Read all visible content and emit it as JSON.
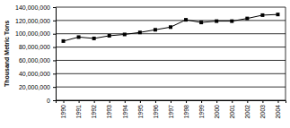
{
  "chart_data": {
    "type": "line",
    "y_label": "Thousand Metric Tons",
    "categories": [
      "1990",
      "1991",
      "1992",
      "1993",
      "1994",
      "1995",
      "1996",
      "1997",
      "1998",
      "1999",
      "2000",
      "2001",
      "2002",
      "2003",
      "2004"
    ],
    "values": [
      89000000,
      95000000,
      93000000,
      97000000,
      99000000,
      102000000,
      106000000,
      110000000,
      121000000,
      117000000,
      119000000,
      119000000,
      123000000,
      128000000,
      129000000
    ],
    "color": "#000000",
    "marker": "square",
    "ylim": [
      0,
      140000000
    ],
    "yticks": [
      0,
      {
        "value": 20000000,
        "label": "20,000,000"
      },
      {
        "value": 40000000,
        "label": "40,000,000"
      },
      {
        "value": 60000000,
        "label": "60,000,000"
      },
      {
        "value": 80000000,
        "label": "80,000,000"
      },
      {
        "value": 100000000,
        "label": "100,000,000"
      },
      {
        "value": 120000000,
        "label": "120,000,000"
      },
      {
        "value": 140000000,
        "label": "140,000,000"
      }
    ],
    "grid": true
  }
}
